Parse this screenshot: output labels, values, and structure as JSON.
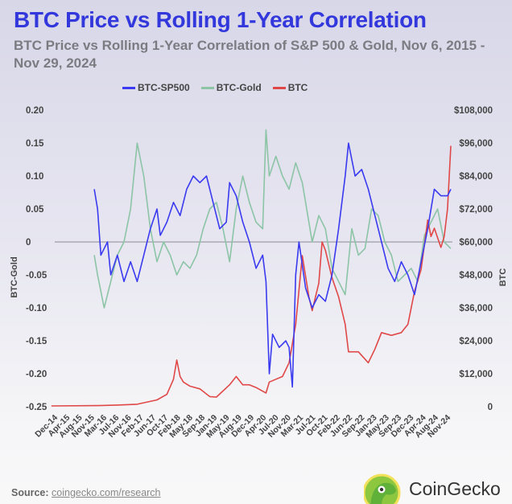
{
  "title": "BTC Price vs Rolling 1-Year Correlation",
  "subtitle": "BTC Price vs Rolling 1-Year Correlation of S&P 500 & Gold, Nov 6, 2015 - Nov 29, 2024",
  "source": {
    "label": "Source:",
    "link": "coingecko.com/research"
  },
  "brand": {
    "name": "CoinGecko"
  },
  "colors": {
    "title": "#3338dc",
    "btc_sp500": "#3a3af0",
    "btc_gold": "#8cc4a6",
    "btc": "#e04848"
  },
  "chart_data": {
    "type": "line",
    "title": "BTC Price vs Rolling 1-Year Correlation",
    "legend_position": "top-center",
    "ylabel_left": "BTC-Gold",
    "ylabel_right": "BTC",
    "ylim_left": [
      -0.25,
      0.2
    ],
    "ylim_right": [
      0,
      108000
    ],
    "left_ticks": [
      "0.20",
      "0.15",
      "0.10",
      "0.05",
      "0",
      "-0.05",
      "-0.10",
      "-0.15",
      "-0.20",
      "-0.25"
    ],
    "left_tick_values": [
      0.2,
      0.15,
      0.1,
      0.05,
      0,
      -0.05,
      -0.1,
      -0.15,
      -0.2,
      -0.25
    ],
    "right_ticks": [
      "$108,000",
      "$96,000",
      "$84,000",
      "$72,000",
      "$60,000",
      "$48,000",
      "$36,000",
      "$24,000",
      "$12,000",
      "0"
    ],
    "right_tick_values": [
      108000,
      96000,
      84000,
      72000,
      60000,
      48000,
      36000,
      24000,
      12000,
      0
    ],
    "x_ticks": [
      "Dec-14",
      "Apr-15",
      "Aug-15",
      "Nov-15",
      "Mar-16",
      "Jul-16",
      "Nov-16",
      "Feb-17",
      "Jun-17",
      "Oct-17",
      "Feb-18",
      "May-18",
      "Sep-18",
      "Jan-19",
      "May-19",
      "Aug-19",
      "Dec-19",
      "Apr-20",
      "Jul-20",
      "Nov-20",
      "Mar-21",
      "Jul-21",
      "Oct-21",
      "Feb-22",
      "Jun-22",
      "Sep-22",
      "Jan-23",
      "May-23",
      "Sep-23",
      "Dec-23",
      "Apr-24",
      "Aug-24",
      "Nov-24"
    ],
    "x_unit": "months since Dec-14",
    "x_range": [
      0,
      119
    ],
    "series": [
      {
        "name": "BTC-SP500",
        "axis": "left",
        "points": [
          [
            11,
            0.08
          ],
          [
            12,
            0.05
          ],
          [
            13,
            -0.02
          ],
          [
            15,
            0.0
          ],
          [
            16,
            -0.05
          ],
          [
            18,
            -0.02
          ],
          [
            20,
            -0.06
          ],
          [
            22,
            -0.03
          ],
          [
            24,
            -0.06
          ],
          [
            26,
            -0.02
          ],
          [
            28,
            0.02
          ],
          [
            30,
            0.05
          ],
          [
            31,
            0.01
          ],
          [
            33,
            0.03
          ],
          [
            35,
            0.06
          ],
          [
            37,
            0.04
          ],
          [
            39,
            0.08
          ],
          [
            41,
            0.1
          ],
          [
            43,
            0.09
          ],
          [
            45,
            0.1
          ],
          [
            47,
            0.06
          ],
          [
            49,
            0.02
          ],
          [
            51,
            0.03
          ],
          [
            52,
            0.09
          ],
          [
            54,
            0.07
          ],
          [
            56,
            0.03
          ],
          [
            58,
            0.0
          ],
          [
            60,
            -0.04
          ],
          [
            62,
            -0.02
          ],
          [
            63,
            -0.06
          ],
          [
            64,
            -0.2
          ],
          [
            65,
            -0.14
          ],
          [
            67,
            -0.16
          ],
          [
            69,
            -0.15
          ],
          [
            70,
            -0.16
          ],
          [
            71,
            -0.22
          ],
          [
            72,
            -0.05
          ],
          [
            73,
            0.0
          ],
          [
            75,
            -0.07
          ],
          [
            77,
            -0.1
          ],
          [
            79,
            -0.08
          ],
          [
            81,
            -0.09
          ],
          [
            83,
            -0.05
          ],
          [
            85,
            0.02
          ],
          [
            87,
            0.1
          ],
          [
            88,
            0.15
          ],
          [
            90,
            0.1
          ],
          [
            92,
            0.11
          ],
          [
            94,
            0.08
          ],
          [
            96,
            0.04
          ],
          [
            98,
            0.0
          ],
          [
            100,
            -0.04
          ],
          [
            102,
            -0.06
          ],
          [
            104,
            -0.03
          ],
          [
            106,
            -0.05
          ],
          [
            108,
            -0.08
          ],
          [
            110,
            -0.03
          ],
          [
            112,
            0.02
          ],
          [
            114,
            0.08
          ],
          [
            116,
            0.07
          ],
          [
            118,
            0.07
          ],
          [
            119,
            0.08
          ]
        ]
      },
      {
        "name": "BTC-Gold",
        "axis": "left",
        "points": [
          [
            11,
            -0.02
          ],
          [
            12,
            -0.05
          ],
          [
            14,
            -0.1
          ],
          [
            16,
            -0.06
          ],
          [
            18,
            -0.02
          ],
          [
            20,
            0.0
          ],
          [
            22,
            0.05
          ],
          [
            24,
            0.15
          ],
          [
            26,
            0.1
          ],
          [
            28,
            0.02
          ],
          [
            30,
            -0.03
          ],
          [
            32,
            0.0
          ],
          [
            34,
            -0.02
          ],
          [
            36,
            -0.05
          ],
          [
            38,
            -0.03
          ],
          [
            40,
            -0.04
          ],
          [
            42,
            -0.02
          ],
          [
            44,
            0.02
          ],
          [
            46,
            0.05
          ],
          [
            48,
            0.06
          ],
          [
            50,
            0.02
          ],
          [
            52,
            -0.03
          ],
          [
            54,
            0.05
          ],
          [
            56,
            0.1
          ],
          [
            58,
            0.06
          ],
          [
            60,
            0.03
          ],
          [
            62,
            0.02
          ],
          [
            63,
            0.17
          ],
          [
            64,
            0.1
          ],
          [
            66,
            0.13
          ],
          [
            68,
            0.1
          ],
          [
            70,
            0.08
          ],
          [
            72,
            0.12
          ],
          [
            74,
            0.09
          ],
          [
            75,
            0.06
          ],
          [
            77,
            0.0
          ],
          [
            79,
            0.04
          ],
          [
            81,
            0.02
          ],
          [
            83,
            -0.04
          ],
          [
            85,
            -0.06
          ],
          [
            87,
            -0.08
          ],
          [
            89,
            0.02
          ],
          [
            91,
            -0.02
          ],
          [
            93,
            -0.01
          ],
          [
            95,
            0.05
          ],
          [
            97,
            0.04
          ],
          [
            99,
            0.0
          ],
          [
            101,
            -0.02
          ],
          [
            103,
            -0.06
          ],
          [
            105,
            -0.05
          ],
          [
            107,
            -0.04
          ],
          [
            109,
            -0.06
          ],
          [
            111,
            0.01
          ],
          [
            113,
            0.03
          ],
          [
            115,
            0.05
          ],
          [
            117,
            0.0
          ],
          [
            119,
            -0.01
          ]
        ]
      },
      {
        "name": "BTC",
        "axis": "right",
        "points": [
          [
            -2,
            300
          ],
          [
            12,
            400
          ],
          [
            18,
            600
          ],
          [
            24,
            900
          ],
          [
            30,
            2500
          ],
          [
            33,
            4500
          ],
          [
            35,
            10000
          ],
          [
            36,
            17000
          ],
          [
            37,
            11000
          ],
          [
            38,
            9000
          ],
          [
            40,
            7500
          ],
          [
            43,
            6500
          ],
          [
            46,
            3700
          ],
          [
            48,
            3500
          ],
          [
            52,
            8000
          ],
          [
            54,
            11000
          ],
          [
            56,
            8000
          ],
          [
            58,
            8000
          ],
          [
            60,
            7000
          ],
          [
            63,
            5000
          ],
          [
            64,
            9000
          ],
          [
            66,
            10000
          ],
          [
            68,
            11000
          ],
          [
            70,
            16000
          ],
          [
            72,
            30000
          ],
          [
            74,
            55000
          ],
          [
            76,
            40000
          ],
          [
            77,
            35000
          ],
          [
            79,
            45000
          ],
          [
            80,
            60000
          ],
          [
            81,
            57000
          ],
          [
            83,
            47000
          ],
          [
            85,
            40000
          ],
          [
            87,
            30000
          ],
          [
            88,
            20000
          ],
          [
            91,
            20000
          ],
          [
            94,
            16000
          ],
          [
            96,
            21000
          ],
          [
            98,
            27000
          ],
          [
            101,
            26000
          ],
          [
            104,
            27000
          ],
          [
            106,
            30000
          ],
          [
            108,
            42000
          ],
          [
            110,
            50000
          ],
          [
            112,
            68000
          ],
          [
            113,
            62000
          ],
          [
            114,
            65000
          ],
          [
            116,
            58000
          ],
          [
            117,
            62000
          ],
          [
            118,
            72000
          ],
          [
            119,
            95000
          ]
        ]
      }
    ]
  }
}
